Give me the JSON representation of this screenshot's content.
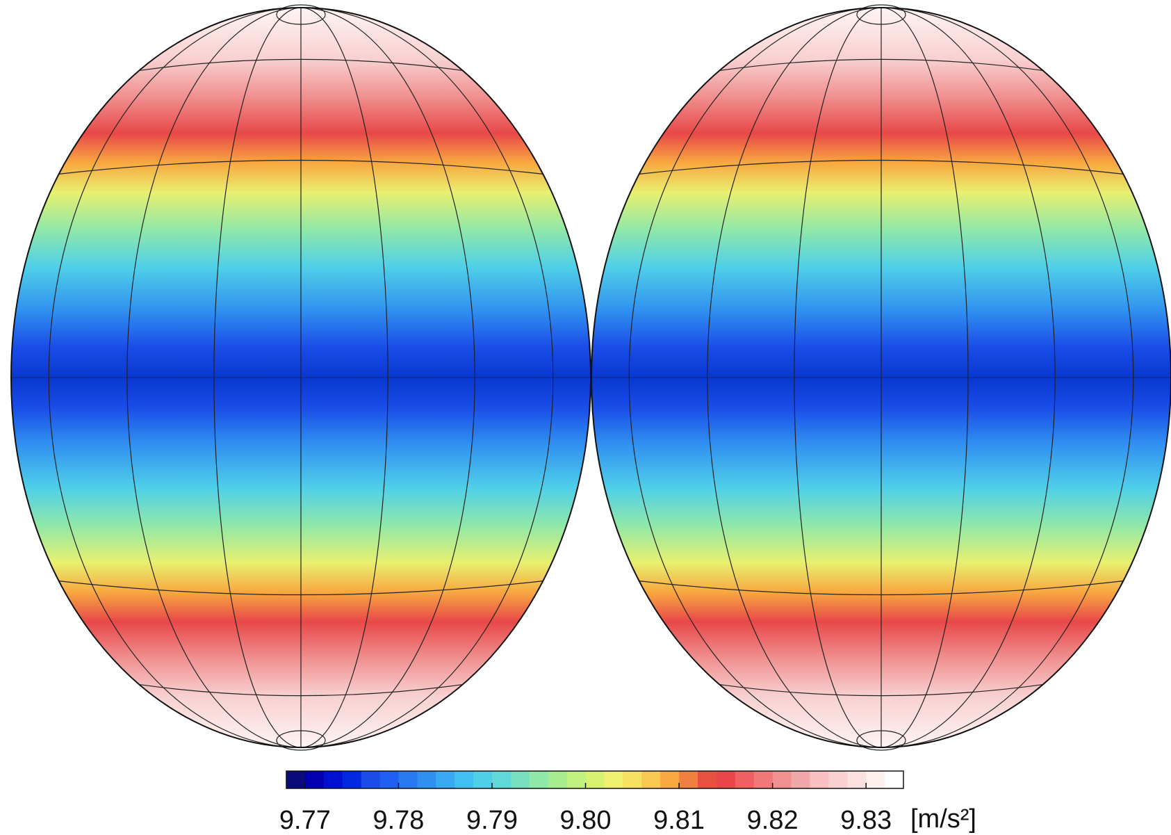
{
  "colorbar": {
    "ticks": [
      9.77,
      9.78,
      9.79,
      {
        "value": 9.8,
        "label": "9.80"
      },
      9.81,
      9.82,
      9.83
    ],
    "lim": [
      9.768,
      9.834
    ],
    "unit": "[m/s²]",
    "colormap": [
      "#0a0a7a",
      "#0000b0",
      "#0010d0",
      "#0028e0",
      "#1a4ce8",
      "#2060f0",
      "#2878f0",
      "#3090f0",
      "#38a8f0",
      "#40c0f0",
      "#50d0e8",
      "#60d8d8",
      "#78e0c0",
      "#90e8a8",
      "#a8ec90",
      "#c0f080",
      "#d8f070",
      "#f0f070",
      "#f8e060",
      "#f8c850",
      "#f8a840",
      "#f08040",
      "#e85040",
      "#e84848",
      "#f06060",
      "#f07878",
      "#f09090",
      "#f0a8a8",
      "#f8c0c0",
      "#f8d0d0",
      "#fce0e0",
      "#fff0f0",
      "#ffffff"
    ]
  }
}
